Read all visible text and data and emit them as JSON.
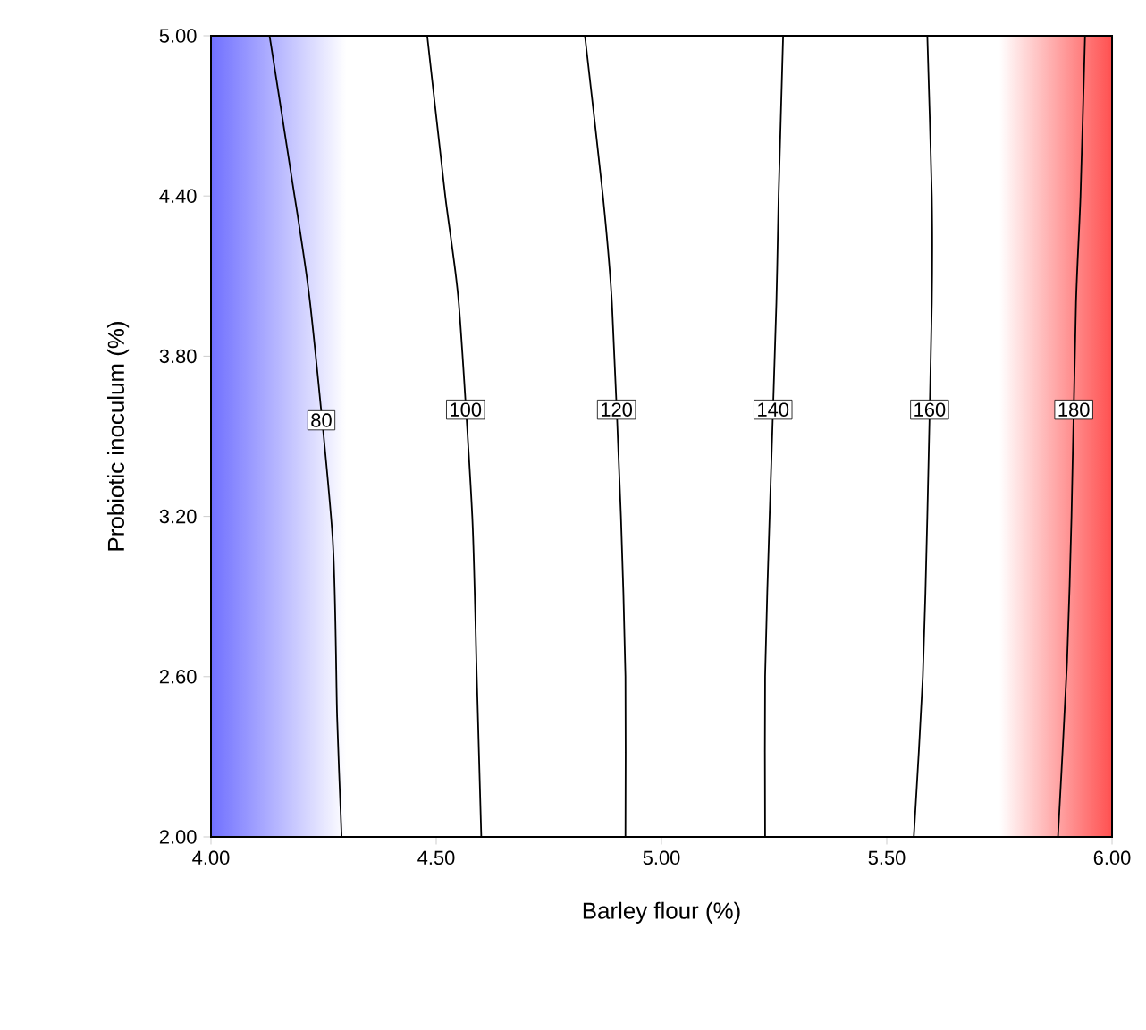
{
  "chart_data": {
    "type": "line",
    "xlabel": "Barley flour (%)",
    "ylabel": "Probiotic inoculum (%)",
    "xlim": [
      4.0,
      6.0
    ],
    "ylim": [
      2.0,
      5.0
    ],
    "xticks": [
      {
        "value": 4.0,
        "label": "4.00"
      },
      {
        "value": 4.5,
        "label": "4.50"
      },
      {
        "value": 5.0,
        "label": "5.00"
      },
      {
        "value": 5.5,
        "label": "5.50"
      },
      {
        "value": 6.0,
        "label": "6.00"
      }
    ],
    "yticks": [
      {
        "value": 2.0,
        "label": "2.00"
      },
      {
        "value": 2.6,
        "label": "2.60"
      },
      {
        "value": 3.2,
        "label": "3.20"
      },
      {
        "value": 3.8,
        "label": "3.80"
      },
      {
        "value": 4.4,
        "label": "4.40"
      },
      {
        "value": 5.0,
        "label": "5.00"
      }
    ],
    "grid": false,
    "marker": "none",
    "line_style": "solid",
    "bands": [
      {
        "axis": "x",
        "from": 4.0,
        "to": 4.3,
        "color": "#7070ff"
      },
      {
        "axis": "x",
        "from": 5.75,
        "to": 6.0,
        "color": "#ff5050"
      }
    ],
    "series": [
      {
        "name": "80",
        "color": "#000000",
        "x": [
          4.13,
          4.18,
          4.22,
          4.27,
          4.28,
          4.29
        ],
        "values": [
          5.0,
          4.46,
          4.0,
          3.12,
          2.45,
          2.0
        ]
      },
      {
        "name": "100",
        "color": "#000000",
        "x": [
          4.48,
          4.52,
          4.55,
          4.58,
          4.59,
          4.6
        ],
        "values": [
          5.0,
          4.4,
          4.0,
          3.2,
          2.6,
          2.0
        ]
      },
      {
        "name": "120",
        "color": "#000000",
        "x": [
          4.83,
          4.87,
          4.89,
          4.91,
          4.92,
          4.92
        ],
        "values": [
          5.0,
          4.4,
          4.0,
          3.2,
          2.6,
          2.0
        ]
      },
      {
        "name": "140",
        "color": "#000000",
        "x": [
          5.27,
          5.26,
          5.255,
          5.24,
          5.23,
          5.23
        ],
        "values": [
          5.0,
          4.4,
          4.0,
          3.2,
          2.6,
          2.0
        ]
      },
      {
        "name": "160",
        "color": "#000000",
        "x": [
          5.59,
          5.6,
          5.6,
          5.59,
          5.58,
          5.56
        ],
        "values": [
          5.0,
          4.4,
          4.0,
          3.2,
          2.6,
          2.0
        ]
      },
      {
        "name": "180",
        "color": "#000000",
        "x": [
          5.94,
          5.93,
          5.92,
          5.91,
          5.9,
          5.88
        ],
        "values": [
          5.0,
          4.4,
          4.0,
          3.2,
          2.65,
          2.0
        ]
      }
    ]
  }
}
